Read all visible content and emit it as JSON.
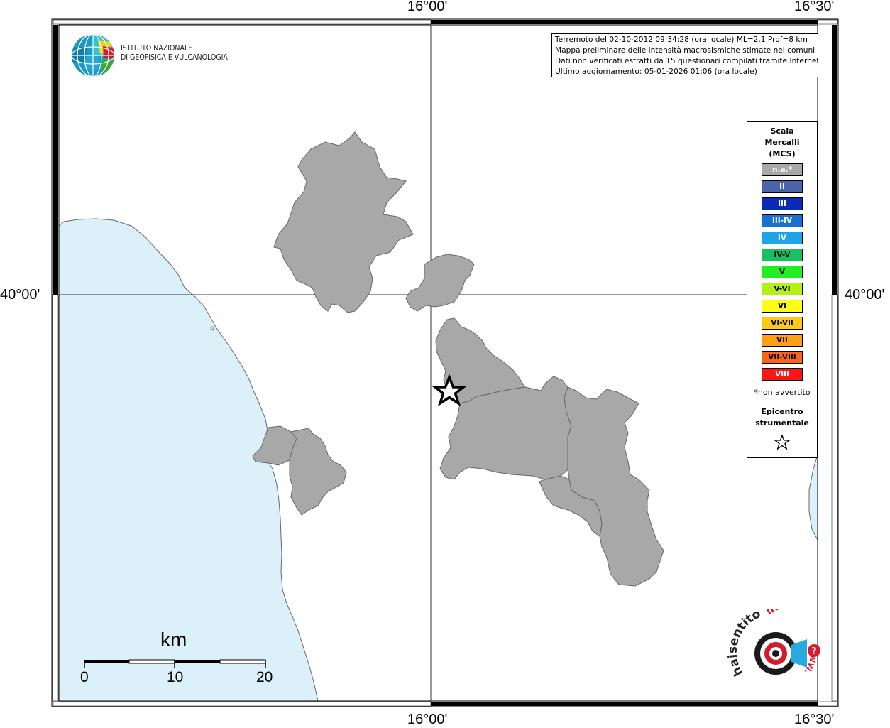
{
  "map": {
    "coord_labels": {
      "top": [
        "16°00'",
        "16°30'"
      ],
      "bottom": [
        "16°00'",
        "16°30'"
      ],
      "left": "40°00'",
      "right": "40°00'"
    },
    "colors": {
      "sea": "#dcf0fa",
      "land": "#ffffff",
      "municipality_fill": "#a8a8a8",
      "coast_line": "#666666",
      "border_line": "#666666"
    }
  },
  "logo": {
    "line1": "ISTITUTO NAZIONALE",
    "line2": "DI GEOFISICA E VULCANOLOGIA",
    "icon": "ingv-globe-icon"
  },
  "info": {
    "lines": [
      "Terremoto del 02-10-2012 09:34:28 (ora locale) ML=2.1 Prof=8 km",
      "Mappa preliminare delle intensità macrosismiche stimate nei comuni",
      "Dati non verificati estratti da 15 questionari compilati tramite Internet.",
      "Ultimo aggiornamento: 05-01-2026 01:06 (ora locale)"
    ]
  },
  "legend": {
    "title_lines": [
      "Scala",
      "Mercalli",
      "(MCS)"
    ],
    "items": [
      {
        "label": "n.a.*",
        "color": "#a8a8a8",
        "text_color": "#ffffff"
      },
      {
        "label": "II",
        "color": "#4a63a9",
        "text_color": "#ffffff"
      },
      {
        "label": "III",
        "color": "#0a2ab8",
        "text_color": "#ffffff"
      },
      {
        "label": "III-IV",
        "color": "#1a6fd4",
        "text_color": "#ffffff"
      },
      {
        "label": "IV",
        "color": "#20a4e8",
        "text_color": "#ffffff"
      },
      {
        "label": "IV-V",
        "color": "#18c064",
        "text_color": "#000000"
      },
      {
        "label": "V",
        "color": "#22ee22",
        "text_color": "#000000"
      },
      {
        "label": "V-VI",
        "color": "#b4f014",
        "text_color": "#000000"
      },
      {
        "label": "VI",
        "color": "#ffff14",
        "text_color": "#000000"
      },
      {
        "label": "VI-VII",
        "color": "#ffc814",
        "text_color": "#000000"
      },
      {
        "label": "VII",
        "color": "#ffa014",
        "text_color": "#000000"
      },
      {
        "label": "VII-VIII",
        "color": "#ff6414",
        "text_color": "#000000"
      },
      {
        "label": "VIII",
        "color": "#ff1414",
        "text_color": "#ffffff"
      }
    ],
    "note": "*non avvertito",
    "epicenter_lines": [
      "Epicentro",
      "strumentale"
    ],
    "epicenter_icon": "star-outline-icon"
  },
  "scale": {
    "title": "km",
    "labels": [
      "0",
      "10",
      "20"
    ]
  },
  "badge": {
    "text_left": "haisentito",
    "text_right": "ilterremoto.it",
    "text_bottom": "WWW.",
    "icon": "haisentito-target-icon"
  }
}
